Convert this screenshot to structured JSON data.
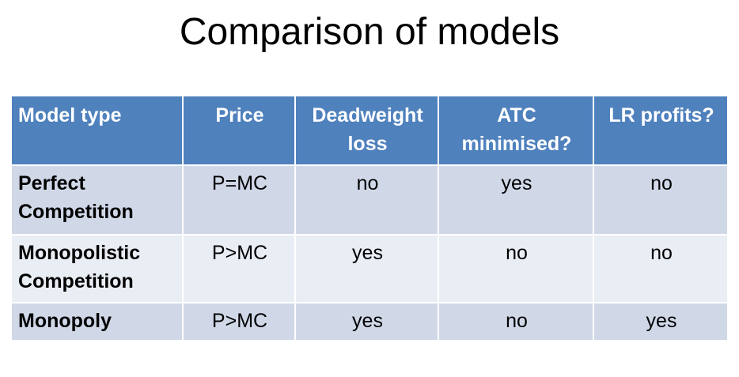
{
  "title": "Comparison of models",
  "table": {
    "headers": [
      "Model type",
      "Price",
      "Deadweight loss",
      "ATC minimised?",
      "LR profits?"
    ],
    "rows": [
      {
        "model": "Perfect Competition",
        "price": "P=MC",
        "deadweight_loss": "no",
        "atc_minimised": "yes",
        "lr_profits": "no"
      },
      {
        "model": "Monopolistic Competition",
        "price": "P>MC",
        "deadweight_loss": "yes",
        "atc_minimised": "no",
        "lr_profits": "no"
      },
      {
        "model": "Monopoly",
        "price": "P>MC",
        "deadweight_loss": "yes",
        "atc_minimised": "no",
        "lr_profits": "yes"
      }
    ]
  },
  "colors": {
    "header_bg": "#4f81bd",
    "row_odd_bg": "#d0d8e8",
    "row_even_bg": "#e9edf4",
    "header_text": "#ffffff"
  }
}
